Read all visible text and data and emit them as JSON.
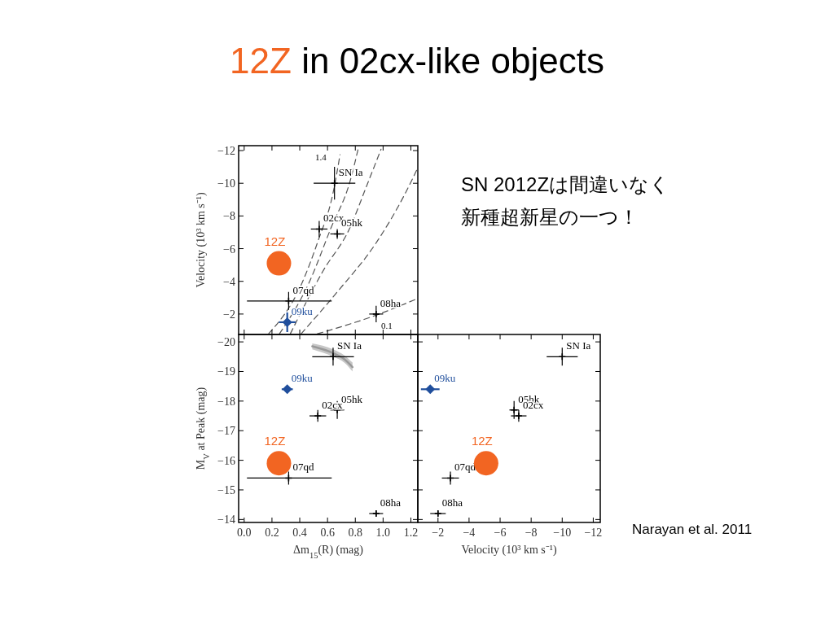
{
  "chart_data": [
    {
      "type": "scatter",
      "title": "12Z in 02cx-like objects",
      "ylabel": "Velocity (10³ km s⁻¹)",
      "annotations": [
        "SN 2012Zは間違いなく",
        "新種超新星の一つ！",
        "1.4",
        "0.1"
      ],
      "xlim": [
        -0.04,
        1.25
      ],
      "xticks": [
        0,
        0.2,
        0.4,
        0.6,
        0.8,
        1,
        1.2
      ],
      "ylim": [
        -0.75,
        -12.3
      ],
      "yticks": [
        -12,
        -10,
        -8,
        -6,
        -4,
        -2
      ],
      "tick_labels": "y",
      "grid": false,
      "series": [
        {
          "type": "line",
          "color": "#555555",
          "line_style": "dashed",
          "x": [
            0.176,
            0.41,
            0.53,
            0.64,
            0.69
          ],
          "values": [
            -0.79,
            -3.78,
            -6.43,
            -9.42,
            -11.75
          ]
        },
        {
          "type": "line",
          "color": "#555555",
          "line_style": "dashed",
          "x": [
            0.254,
            0.468,
            0.625,
            0.761,
            0.82
          ],
          "values": [
            -0.79,
            -3.94,
            -7.27,
            -10.09,
            -12.08
          ]
        },
        {
          "type": "line",
          "color": "#555555",
          "line_style": "dashed",
          "x": [
            0.332,
            0.566,
            0.761,
            0.878,
            0.985
          ],
          "values": [
            -0.79,
            -4.61,
            -7.27,
            -9.76,
            -12.08
          ]
        },
        {
          "type": "line",
          "color": "#555555",
          "line_style": "dashed",
          "x": [
            0.41,
            0.663,
            0.956,
            1.152,
            1.249
          ],
          "values": [
            -0.79,
            -3.28,
            -6.43,
            -9.26,
            -10.93
          ]
        },
        {
          "type": "line",
          "color": "#555555",
          "line_style": "dashed",
          "x": [
            0.527,
            0.956,
            1.249
          ],
          "values": [
            -0.79,
            -1.95,
            -2.95
          ]
        },
        {
          "name": "SN Ia",
          "color": "#000000",
          "marker": "cross",
          "x": [
            0.65
          ],
          "values": [
            -10
          ],
          "errors": [
            1
          ],
          "xerrors": [
            0.15
          ]
        },
        {
          "name": "02cx",
          "color": "#000000",
          "marker": "cross",
          "x": [
            0.54
          ],
          "values": [
            -7.2
          ],
          "errors": [
            0.5
          ],
          "xerrors": [
            0.06
          ]
        },
        {
          "name": "05hk",
          "color": "#000000",
          "marker": "cross",
          "x": [
            0.67
          ],
          "values": [
            -6.9
          ],
          "errors": [
            0.3
          ],
          "xerrors": [
            0.05
          ]
        },
        {
          "name": "07qd",
          "color": "#000000",
          "marker": "cross",
          "x": [
            0.32
          ],
          "values": [
            -2.8
          ],
          "errors": [
            0.55
          ],
          "xerrors": [
            [
              0.02,
              0.63
            ]
          ]
        },
        {
          "name": "08ha",
          "color": "#000000",
          "marker": "cross",
          "x": [
            0.95
          ],
          "values": [
            -2
          ],
          "errors": [
            0.5
          ],
          "xerrors": [
            0.05
          ]
        },
        {
          "name": "09ku",
          "color": "#1f4e9c",
          "marker": "diamond",
          "x": [
            0.31
          ],
          "values": [
            -1.5
          ],
          "errors": [
            0.6
          ],
          "xerrors": [
            0.06
          ]
        },
        {
          "name": "12Z",
          "color": "#f26522",
          "marker": "circle",
          "x": [
            0.25
          ],
          "values": [
            -5.1
          ]
        }
      ]
    },
    {
      "type": "scatter",
      "xlabel": "Δm$_{15}$(R) (mag)",
      "ylabel": "M$_{V}$ at Peak (mag)",
      "xlim": [
        -0.04,
        1.25
      ],
      "xticks": [
        {
          "value": 0,
          "label": "0.0"
        },
        0.2,
        0.4,
        0.6,
        0.8,
        {
          "value": 1,
          "label": "1.0"
        },
        1.2
      ],
      "ylim": [
        -13.9,
        -20.25
      ],
      "yticks": [
        -20,
        -19,
        -18,
        -17,
        -16,
        -15,
        -14
      ],
      "grid": false,
      "series": [
        {
          "type": "line",
          "color": "#999999",
          "x": [
            0.49,
            0.64,
            0.72,
            0.78
          ],
          "values": [
            -19.85,
            -19.62,
            -19.42,
            -19.15
          ],
          "lower": [
            -19.95,
            -19.75,
            -19.55,
            -19.3
          ],
          "upper": [
            -19.75,
            -19.5,
            -19.3,
            -19.0
          ]
        },
        {
          "name": "SN Ia",
          "color": "#000000",
          "marker": "cross",
          "x": [
            0.64
          ],
          "values": [
            -19.5
          ],
          "errors": [
            0.3
          ],
          "xerrors": [
            0.15
          ]
        },
        {
          "name": "09ku",
          "color": "#1f4e9c",
          "marker": "diamond",
          "x": [
            0.31
          ],
          "values": [
            -18.4
          ],
          "errors": [
            0.1
          ],
          "xerrors": [
            0.04
          ]
        },
        {
          "name": "05hk",
          "color": "#000000",
          "marker": "cross",
          "x": [
            0.67
          ],
          "values": [
            -17.7
          ],
          "errors": [
            0.3
          ],
          "xerrors": [
            0.05
          ]
        },
        {
          "name": "02cx",
          "color": "#000000",
          "marker": "cross",
          "x": [
            0.53
          ],
          "values": [
            -17.5
          ],
          "errors": [
            0.2
          ],
          "xerrors": [
            0.06
          ]
        },
        {
          "name": "07qd",
          "color": "#000000",
          "marker": "cross",
          "x": [
            0.32
          ],
          "values": [
            -15.4
          ],
          "errors": [
            0.22
          ],
          "xerrors": [
            [
              0.02,
              0.63
            ]
          ]
        },
        {
          "name": "08ha",
          "color": "#000000",
          "marker": "cross",
          "x": [
            0.95
          ],
          "values": [
            -14.2
          ],
          "errors": [
            0.1
          ],
          "xerrors": [
            0.05
          ]
        },
        {
          "name": "12Z",
          "color": "#f26522",
          "marker": "circle",
          "x": [
            0.25
          ],
          "values": [
            -15.9
          ]
        }
      ]
    },
    {
      "type": "scatter",
      "xlabel": "Velocity (10³ km s⁻¹)",
      "annotations": [
        "Narayan et al. 2011"
      ],
      "xlim": [
        -0.7,
        -12.45
      ],
      "xticks": [
        -2,
        -4,
        -6,
        -8,
        -10,
        -12
      ],
      "ylim": [
        -13.9,
        -20.25
      ],
      "yticks": [
        -20,
        -19,
        -18,
        -17,
        -16,
        -15,
        -14
      ],
      "tick_labels": "x",
      "grid": false,
      "series": [
        {
          "name": "SN Ia",
          "color": "#000000",
          "marker": "cross",
          "x": [
            -10
          ],
          "values": [
            -19.5
          ],
          "errors": [
            0.3
          ],
          "xerrors": [
            1
          ]
        },
        {
          "name": "09ku",
          "color": "#1f4e9c",
          "marker": "diamond",
          "x": [
            -1.5
          ],
          "values": [
            -18.4
          ],
          "errors": [
            0.1
          ],
          "xerrors": [
            0.6
          ]
        },
        {
          "name": "05hk",
          "color": "#000000",
          "marker": "cross",
          "x": [
            -6.9
          ],
          "values": [
            -17.7
          ],
          "errors": [
            0.3
          ],
          "xerrors": [
            0.3
          ]
        },
        {
          "name": "02cx",
          "color": "#000000",
          "marker": "cross",
          "x": [
            -7.2
          ],
          "values": [
            -17.5
          ],
          "errors": [
            0.2
          ],
          "xerrors": [
            0.5
          ]
        },
        {
          "name": "07qd",
          "color": "#000000",
          "marker": "cross",
          "x": [
            -2.8
          ],
          "values": [
            -15.4
          ],
          "errors": [
            0.22
          ],
          "xerrors": [
            0.55
          ]
        },
        {
          "name": "08ha",
          "color": "#000000",
          "marker": "cross",
          "x": [
            -2
          ],
          "values": [
            -14.2
          ],
          "errors": [
            0.1
          ],
          "xerrors": [
            0.5
          ]
        },
        {
          "name": "12Z",
          "color": "#f26522",
          "marker": "circle",
          "x": [
            -5.1
          ],
          "values": [
            -15.9
          ]
        }
      ]
    }
  ]
}
